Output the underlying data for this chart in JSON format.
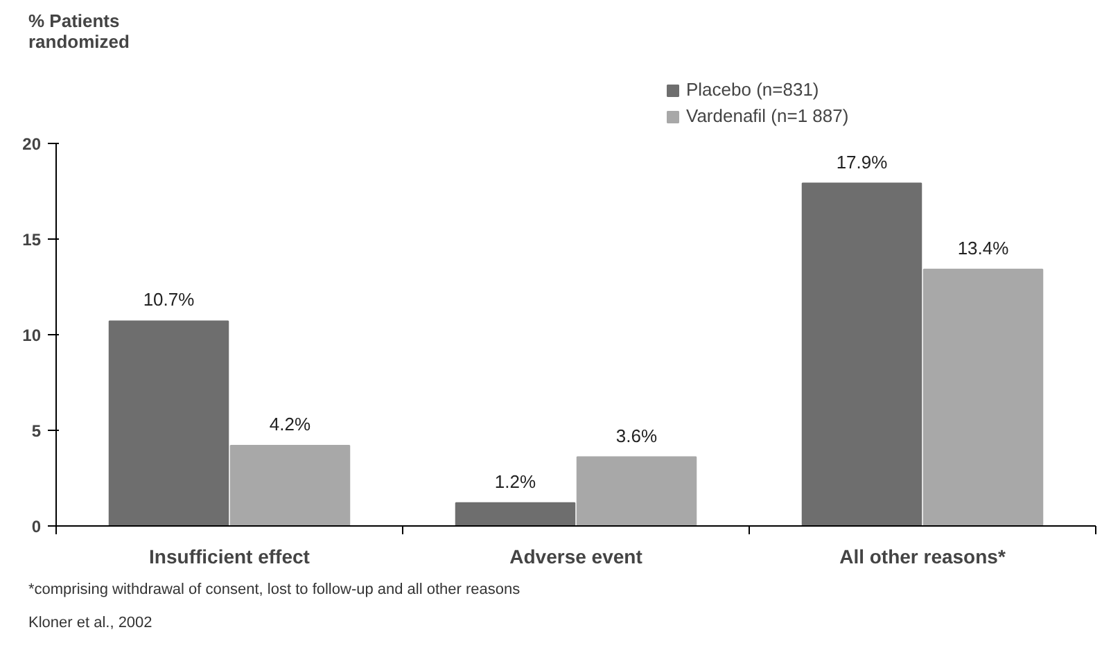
{
  "chart_data": {
    "type": "bar",
    "ylabel": "% Patients\nrandomized",
    "categories": [
      "Insufficient effect",
      "Adverse event",
      "All other reasons*"
    ],
    "series": [
      {
        "name": "Placebo (n=831)",
        "color": "#6e6e6e",
        "values": [
          10.7,
          1.2,
          17.9
        ],
        "value_labels": [
          "10.7%",
          "1.2%",
          "17.9%"
        ]
      },
      {
        "name": "Vardenafil (n=1 887)",
        "color": "#a8a8a8",
        "values": [
          4.2,
          3.6,
          13.4
        ],
        "value_labels": [
          "4.2%",
          "3.6%",
          "13.4%"
        ]
      }
    ],
    "ylim": [
      0,
      20
    ],
    "yticks": [
      0,
      5,
      10,
      15,
      20
    ],
    "grid": false,
    "legend": "top right",
    "annotations": [
      "Kloner et al., 2002",
      "*comprising withdrawal of consent, lost to follow-up and all other reasons"
    ]
  }
}
